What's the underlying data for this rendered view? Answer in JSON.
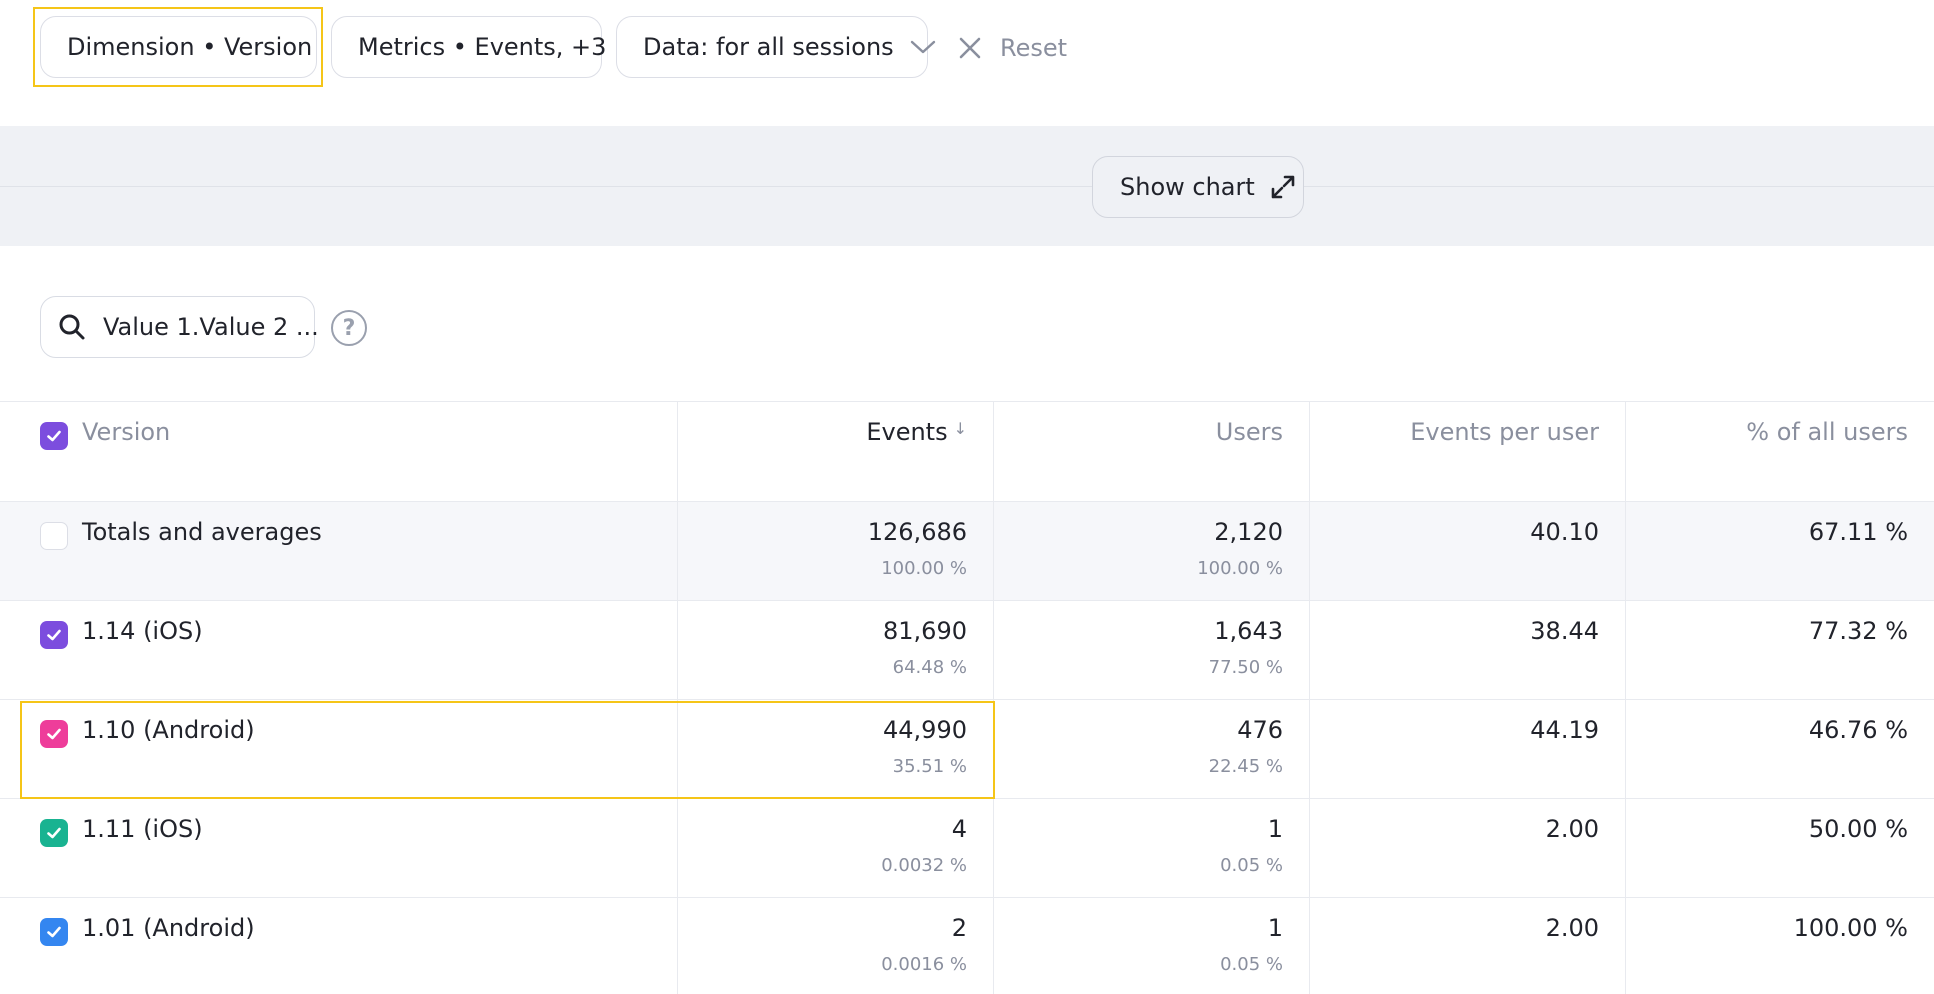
{
  "filters": {
    "dimension_label": "Dimension • Version",
    "metrics_label": "Metrics • Events, +3",
    "data_label": "Data: for all sessions",
    "reset_label": "Reset"
  },
  "chart_toggle": {
    "label": "Show chart"
  },
  "search": {
    "value": "Value 1.Value 2 ...",
    "help": "?"
  },
  "table": {
    "columns": {
      "version": "Version",
      "events": "Events",
      "events_sort": "↓",
      "users": "Users",
      "events_per_user": "Events per user",
      "pct_all_users": "% of all users"
    },
    "rows": [
      {
        "name": "Totals and averages",
        "events": "126,686",
        "events_pct": "100.00 %",
        "users": "2,120",
        "users_pct": "100.00 %",
        "epu": "40.10",
        "pct": "67.11 %",
        "checkbox": "none"
      },
      {
        "name": "1.14 (iOS)",
        "events": "81,690",
        "events_pct": "64.48 %",
        "users": "1,643",
        "users_pct": "77.50 %",
        "epu": "38.44",
        "pct": "77.32 %",
        "checkbox": "#7c4dde"
      },
      {
        "name": "1.10 (Android)",
        "events": "44,990",
        "events_pct": "35.51 %",
        "users": "476",
        "users_pct": "22.45 %",
        "epu": "44.19",
        "pct": "46.76 %",
        "checkbox": "#ee3d9a"
      },
      {
        "name": "1.11 (iOS)",
        "events": "4",
        "events_pct": "0.0032 %",
        "users": "1",
        "users_pct": "0.05 %",
        "epu": "2.00",
        "pct": "50.00 %",
        "checkbox": "#19b391"
      },
      {
        "name": "1.01 (Android)",
        "events": "2",
        "events_pct": "0.0016 %",
        "users": "1",
        "users_pct": "0.05 %",
        "epu": "2.00",
        "pct": "100.00 %",
        "checkbox": "#3486f0"
      }
    ]
  },
  "colors": {
    "header_checkbox": "#7c4dde",
    "highlight": "#f5c518"
  },
  "icons": [
    "chevron-down-icon",
    "close-icon",
    "expand-icon",
    "search-icon",
    "help-icon",
    "check-icon"
  ]
}
